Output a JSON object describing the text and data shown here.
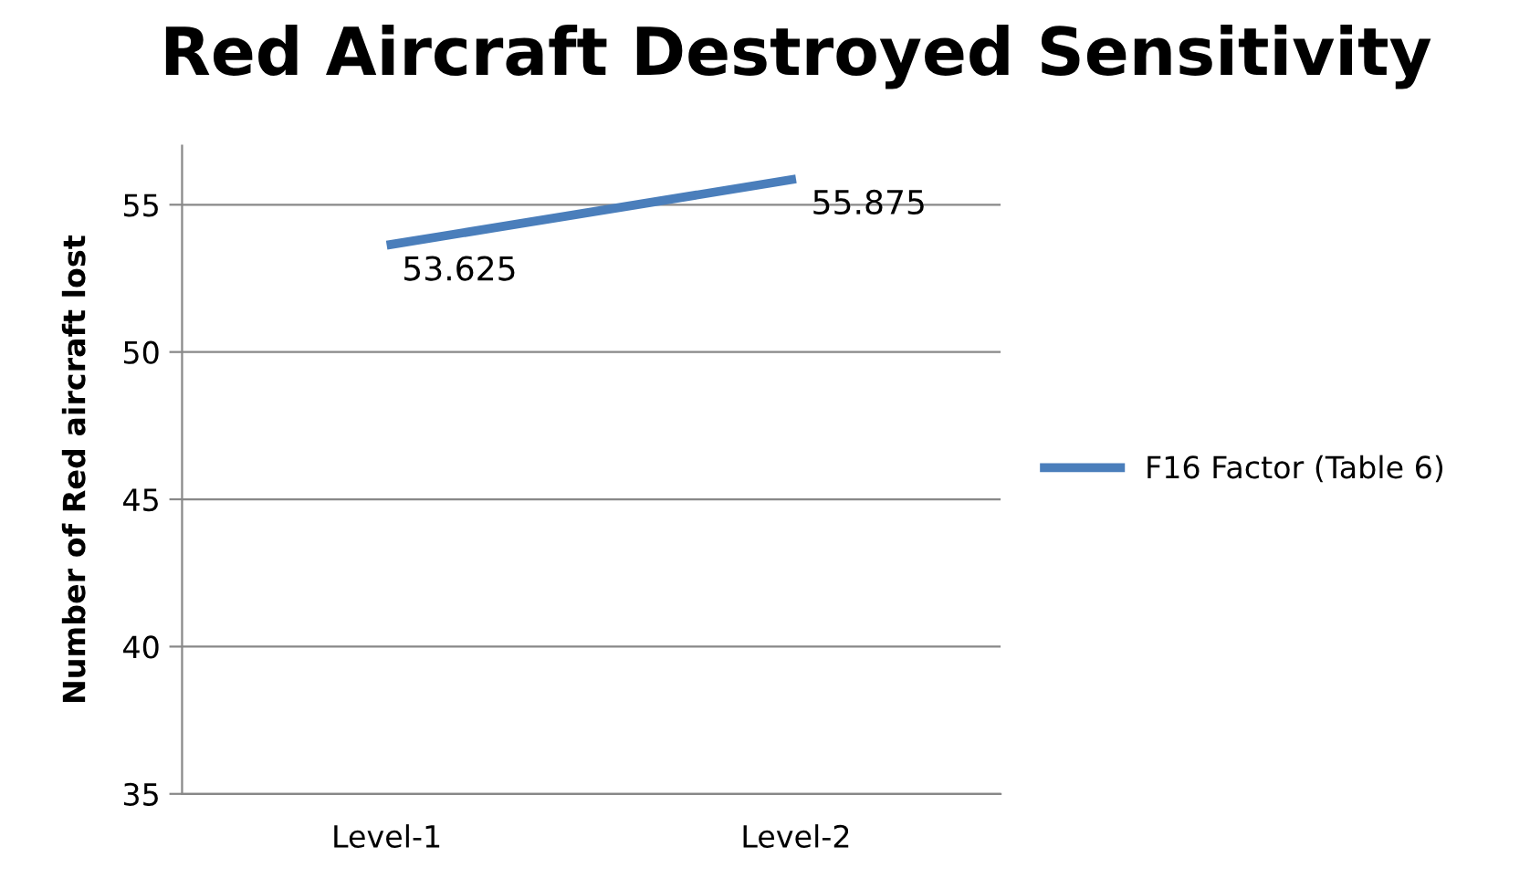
{
  "chart_data": {
    "type": "line",
    "title": "Red Aircraft Destroyed Sensitivity",
    "ylabel": "Number of Red aircraft lost",
    "categories": [
      "Level-1",
      "Level-2"
    ],
    "series": [
      {
        "name": "F16 Factor (Table 6)",
        "color": "#4a7ebb",
        "values": [
          53.625,
          55.875
        ]
      }
    ],
    "ylim": [
      35,
      57
    ],
    "yticks": [
      35,
      40,
      45,
      50,
      55
    ],
    "grid": "y",
    "legend": "right",
    "data_labels": true,
    "marker": "none",
    "line_style": "solid"
  }
}
